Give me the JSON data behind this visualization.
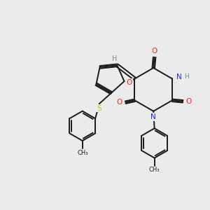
{
  "bg_color": "#ebebeb",
  "bond_color": "#1a1a1a",
  "N_color": "#2121ff",
  "O_color": "#ff2020",
  "S_color": "#cccc00",
  "H_color": "#6b8e8e",
  "figsize": [
    3.0,
    3.0
  ],
  "dpi": 100,
  "xlim": [
    0,
    10
  ],
  "ylim": [
    0,
    10
  ]
}
